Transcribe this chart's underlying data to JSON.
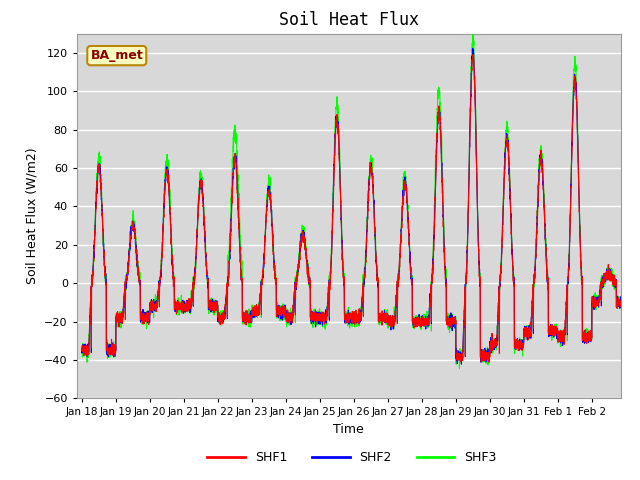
{
  "title": "Soil Heat Flux",
  "xlabel": "Time",
  "ylabel": "Soil Heat Flux (W/m2)",
  "ylim": [
    -60,
    130
  ],
  "yticks": [
    -60,
    -40,
    -20,
    0,
    20,
    40,
    60,
    80,
    100,
    120
  ],
  "series_colors": [
    "red",
    "blue",
    "lime"
  ],
  "series_labels": [
    "SHF1",
    "SHF2",
    "SHF3"
  ],
  "legend_label": "BA_met",
  "legend_label_color": "#8B0000",
  "legend_bg": "#FFFFC0",
  "legend_border": "#B8860B",
  "bg_color": "#D8D8D8",
  "title_fontsize": 12,
  "axis_fontsize": 9,
  "line_width": 0.8,
  "num_points": 3840
}
